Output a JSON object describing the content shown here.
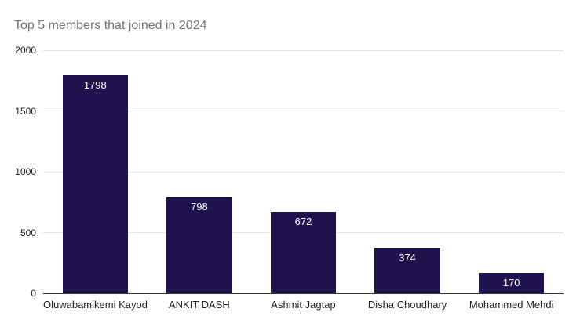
{
  "title": "Top 5 members that joined in 2024",
  "colors": {
    "bar": "#20124d",
    "title": "#757575",
    "axis_label": "#222222",
    "gridline": "#e6e6e6",
    "baseline": "#333333",
    "value_label": "#ffffff",
    "background": "#ffffff"
  },
  "chart_data": {
    "type": "bar",
    "title": "Top 5 members that joined in 2024",
    "categories": [
      "Oluwabamikemi Kayode",
      "ANKIT DASH",
      "Ashmit Jagtap",
      "Disha Choudhary",
      "Mohammed Mehdi"
    ],
    "values": [
      1798,
      798,
      672,
      374,
      170
    ],
    "xlabel": "",
    "ylabel": "",
    "ylim": [
      0,
      2000
    ],
    "yticks": [
      0,
      500,
      1000,
      1500,
      2000
    ],
    "grid": true,
    "legend_position": "none",
    "value_labels": "inside-top",
    "bar_color": "#20124d"
  }
}
